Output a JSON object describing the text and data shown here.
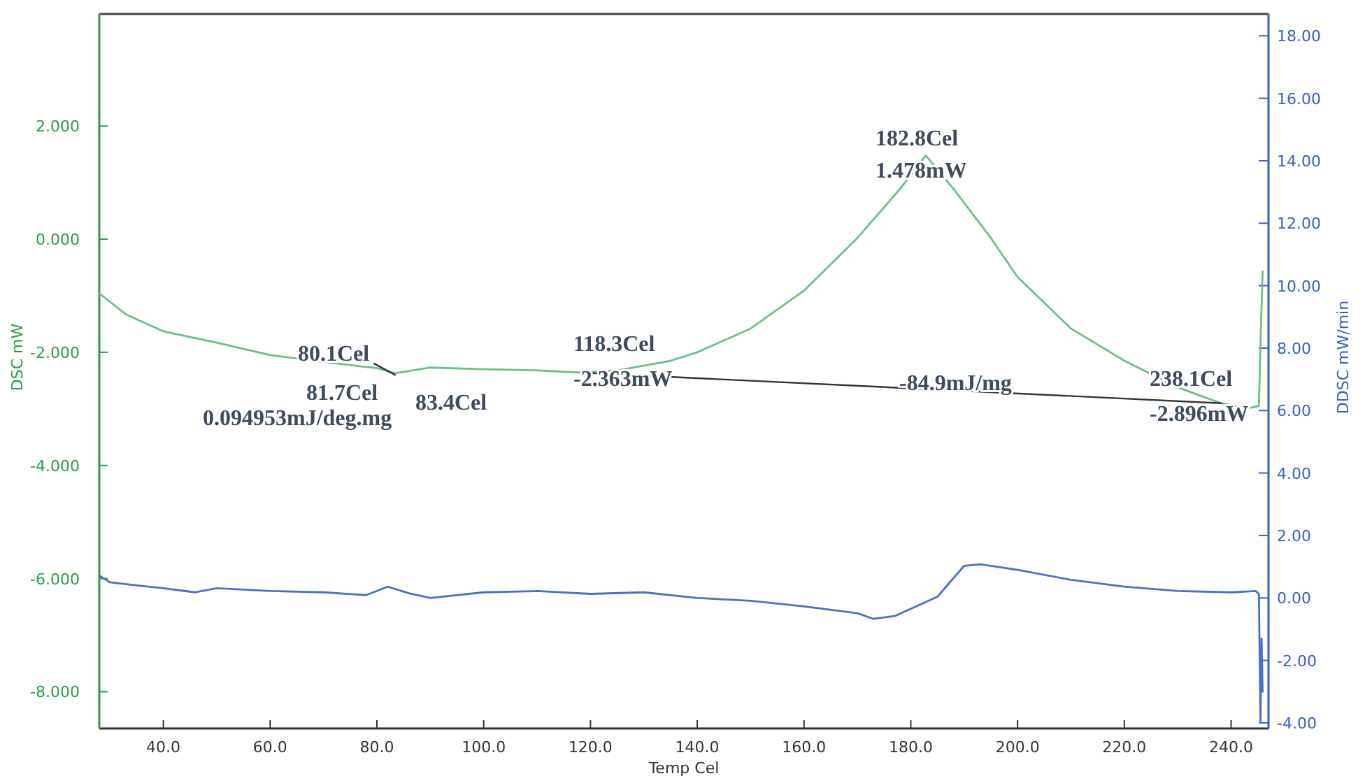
{
  "chart_data": {
    "type": "line",
    "xlabel": "Temp Cel",
    "ylabel": "DSC mW",
    "y2label": "DDSC mW/min",
    "xlim": [
      28,
      247
    ],
    "ylim": [
      -8.65,
      3.98
    ],
    "y2lim": [
      -4.18,
      18.7
    ],
    "xticks": [
      {
        "value": 40,
        "label": "40.0"
      },
      {
        "value": 60,
        "label": "60.0"
      },
      {
        "value": 80,
        "label": "80.0"
      },
      {
        "value": 100,
        "label": "100.0"
      },
      {
        "value": 120,
        "label": "120.0"
      },
      {
        "value": 140,
        "label": "140.0"
      },
      {
        "value": 160,
        "label": "160.0"
      },
      {
        "value": 180,
        "label": "180.0"
      },
      {
        "value": 200,
        "label": "200.0"
      },
      {
        "value": 220,
        "label": "220.0"
      },
      {
        "value": 240,
        "label": "240.0"
      }
    ],
    "yticks": [
      {
        "value": -8,
        "label": "-8.000"
      },
      {
        "value": -6,
        "label": "-6.000"
      },
      {
        "value": -4,
        "label": "-4.000"
      },
      {
        "value": -2,
        "label": "-2.000"
      },
      {
        "value": 0,
        "label": "0.000"
      },
      {
        "value": 2,
        "label": "2.000"
      }
    ],
    "y2ticks": [
      {
        "value": -4,
        "label": "-4.00"
      },
      {
        "value": -2,
        "label": "-2.00"
      },
      {
        "value": 0,
        "label": "0.00"
      },
      {
        "value": 2,
        "label": "2.00"
      },
      {
        "value": 4,
        "label": "4.00"
      },
      {
        "value": 6,
        "label": "6.00"
      },
      {
        "value": 8,
        "label": "8.00"
      },
      {
        "value": 10,
        "label": "10.00"
      },
      {
        "value": 12,
        "label": "12.00"
      },
      {
        "value": 14,
        "label": "14.00"
      },
      {
        "value": 16,
        "label": "16.00"
      },
      {
        "value": 18,
        "label": "18.00"
      }
    ],
    "series": [
      {
        "color": "#6cbf84",
        "x": [
          28,
          33,
          40,
          50,
          60,
          70,
          77,
          80.1,
          83.4,
          90,
          100,
          110,
          118.3,
          125,
          135,
          140,
          150,
          160,
          170,
          178,
          182.8,
          188,
          195,
          200,
          210,
          220,
          230,
          238.1,
          243,
          245.2,
          245.6,
          245.9
        ],
        "values": [
          -0.96,
          -1.33,
          -1.63,
          -1.83,
          -2.05,
          -2.17,
          -2.25,
          -2.28,
          -2.37,
          -2.27,
          -2.3,
          -2.32,
          -2.36,
          -2.32,
          -2.15,
          -2.0,
          -1.58,
          -0.91,
          0.02,
          0.89,
          1.48,
          0.89,
          0.02,
          -0.67,
          -1.58,
          -2.15,
          -2.62,
          -2.9,
          -2.99,
          -2.95,
          -1.5,
          -0.57
        ]
      },
      {
        "color": "#4a6fd0",
        "axis": "y2",
        "x": [
          28,
          30,
          35,
          40,
          46,
          50,
          60,
          70,
          78,
          82,
          86,
          90,
          100,
          110,
          120,
          130,
          140,
          150,
          160,
          170,
          173,
          177,
          185,
          190,
          193,
          200,
          210,
          220,
          230,
          240,
          244.6,
          245.2,
          245.5,
          245.7,
          245.9
        ],
        "values": [
          0.72,
          0.5,
          0.4,
          0.31,
          0.18,
          0.31,
          0.22,
          0.18,
          0.09,
          0.36,
          0.15,
          0,
          0.18,
          0.22,
          0.13,
          0.18,
          0,
          -0.09,
          -0.27,
          -0.49,
          -0.67,
          -0.58,
          0.04,
          1.03,
          1.08,
          0.9,
          0.58,
          0.36,
          0.22,
          0.18,
          0.22,
          0.13,
          -4.0,
          -1.3,
          -3.0
        ]
      },
      {
        "color": "#333333",
        "x": [
          79.5,
          83.4
        ],
        "values": [
          -2.2,
          -2.4
        ]
      },
      {
        "color": "#333333",
        "x": [
          118.3,
          238.1
        ],
        "values": [
          -2.36,
          -2.9
        ]
      }
    ],
    "annotations": [
      "80.1Cel",
      "81.7Cel",
      "83.4Cel",
      "0.094953mJ/deg.mg",
      "118.3Cel",
      "-2.363mW",
      "182.8Cel",
      "1.478mW",
      "-84.9mJ/mg",
      "238.1Cel",
      "-2.896mW"
    ]
  }
}
